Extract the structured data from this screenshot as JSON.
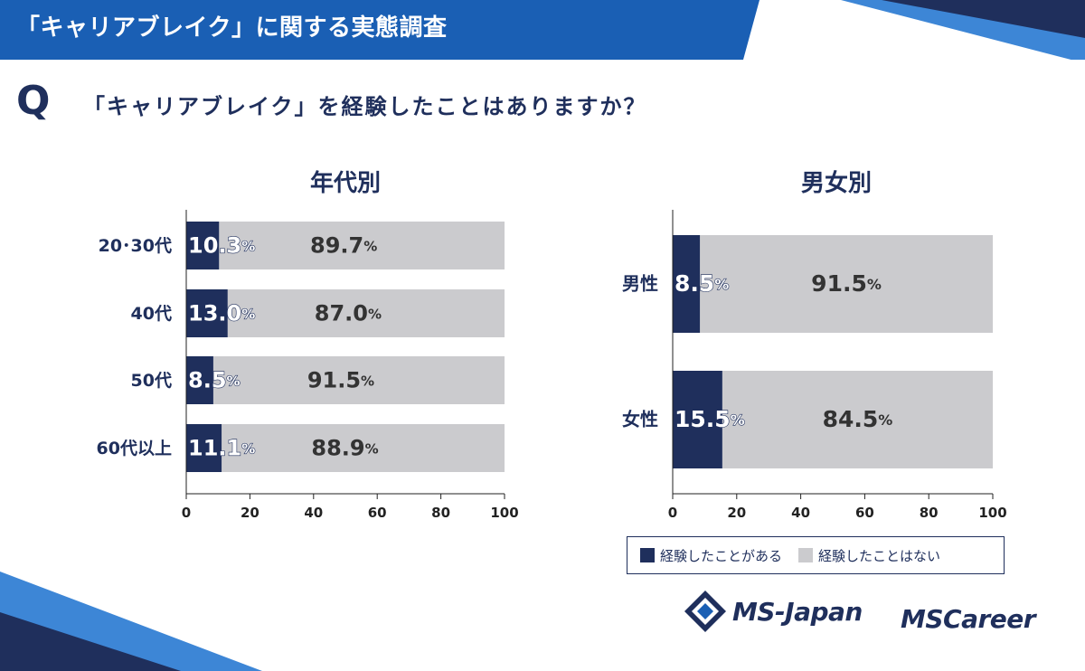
{
  "header": {
    "title": "「キャリアブレイク」に関する実態調査"
  },
  "question": {
    "mark": "Q",
    "text": "「キャリアブレイク」を経験したことはありますか？"
  },
  "colors": {
    "navy": "#1f2f5c",
    "gray": "#cbcbce",
    "accent_blue": "#1a5fb4"
  },
  "chart_data": [
    {
      "type": "bar",
      "orientation": "horizontal",
      "stacked": true,
      "title": "年代別",
      "categories": [
        "20･30代",
        "40代",
        "50代",
        "60代以上"
      ],
      "series": [
        {
          "name": "経験したことがある",
          "values": [
            10.3,
            13.0,
            8.5,
            11.1
          ],
          "labels": [
            "10.3",
            "13.0",
            "8.5",
            "11.1"
          ]
        },
        {
          "name": "経験したことはない",
          "values": [
            89.7,
            87.0,
            91.5,
            88.9
          ],
          "labels": [
            "89.7",
            "87.0",
            "91.5",
            "88.9"
          ]
        }
      ],
      "unit": "%",
      "xlim": [
        0,
        100
      ],
      "xticks": [
        "0",
        "20",
        "40",
        "60",
        "80",
        "100"
      ]
    },
    {
      "type": "bar",
      "orientation": "horizontal",
      "stacked": true,
      "title": "男女別",
      "categories": [
        "男性",
        "女性"
      ],
      "series": [
        {
          "name": "経験したことがある",
          "values": [
            8.5,
            15.5
          ],
          "labels": [
            "8.5",
            "15.5"
          ]
        },
        {
          "name": "経験したことはない",
          "values": [
            91.5,
            84.5
          ],
          "labels": [
            "91.5",
            "84.5"
          ]
        }
      ],
      "unit": "%",
      "xlim": [
        0,
        100
      ],
      "xticks": [
        "0",
        "20",
        "40",
        "60",
        "80",
        "100"
      ]
    }
  ],
  "legend": {
    "items": [
      "経験したことがある",
      "経験したことはない"
    ]
  },
  "logos": {
    "ms_japan": "MS-Japan",
    "ms_career": "MSCareer"
  }
}
